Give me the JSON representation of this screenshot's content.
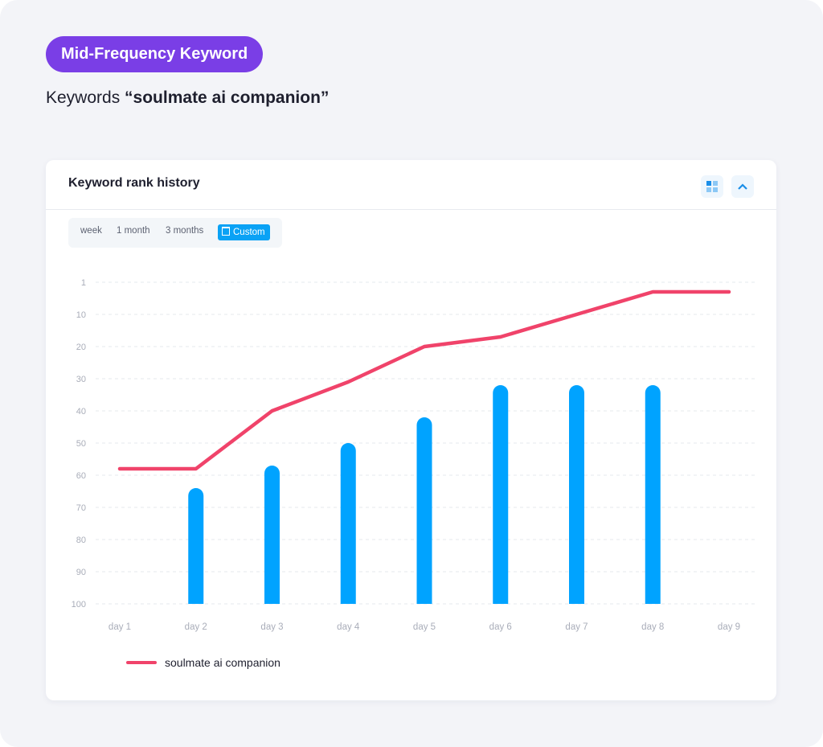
{
  "badge": "Mid-Frequency Keyword",
  "keyword_prefix": "Keywords",
  "keyword": "“soulmate ai companion”",
  "card": {
    "title": "Keyword rank history",
    "icons": [
      "grid-icon",
      "chevron-up-icon"
    ],
    "tabs": [
      {
        "label": "week",
        "active": false
      },
      {
        "label": "1 month",
        "active": false
      },
      {
        "label": "3 months",
        "active": false
      },
      {
        "label": "Custom",
        "active": true,
        "icon": "calendar-icon"
      }
    ]
  },
  "colors": {
    "accent": "#7a3ee6",
    "line": "#f0436a",
    "bar": "#00a3ff"
  },
  "chart_data": {
    "type": "line+bar",
    "title": "Keyword rank history",
    "categories": [
      "day 1",
      "day 2",
      "day 3",
      "day 4",
      "day 5",
      "day 6",
      "day 7",
      "day 8",
      "day 9"
    ],
    "y_ticks": [
      "1",
      "10",
      "20",
      "30",
      "40",
      "50",
      "60",
      "70",
      "80",
      "90",
      "100"
    ],
    "ylim": [
      0,
      100
    ],
    "y_inverted": true,
    "grid": true,
    "series": [
      {
        "name": "soulmate ai companion",
        "type": "line",
        "values": [
          58,
          58,
          40,
          31,
          20,
          17,
          10,
          3,
          3
        ]
      },
      {
        "name": "",
        "type": "bar",
        "values": [
          null,
          64,
          57,
          50,
          42,
          32,
          32,
          32,
          null
        ]
      }
    ],
    "legend": {
      "position": "bottom-left",
      "entries": [
        "soulmate ai companion"
      ]
    }
  }
}
